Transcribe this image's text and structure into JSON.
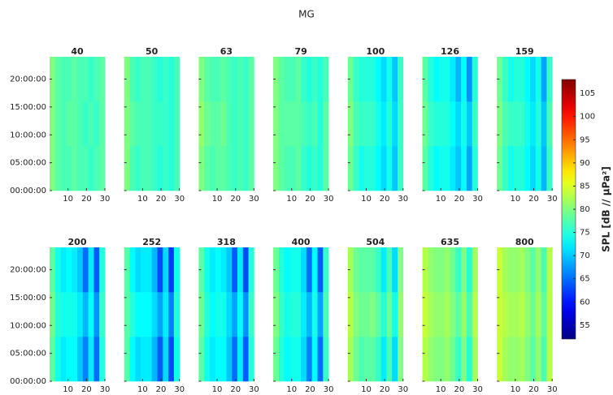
{
  "chart_data": {
    "type": "heatmap",
    "title": "MG",
    "colorbar_label": "SPL [dB // μPa²]",
    "colormap": "jet",
    "xlim": [
      0,
      30
    ],
    "xticks": [
      10,
      20,
      30
    ],
    "ylim": [
      0,
      24
    ],
    "yticks": [
      {
        "value": 0,
        "label": "00:00:00"
      },
      {
        "value": 5,
        "label": "05:00:00"
      },
      {
        "value": 10,
        "label": "10:00:00"
      },
      {
        "value": 15,
        "label": "15:00:00"
      },
      {
        "value": 20,
        "label": "20:00:00"
      }
    ],
    "zlim": [
      52,
      108
    ],
    "zticks": [
      55,
      60,
      65,
      70,
      75,
      80,
      85,
      90,
      95,
      100,
      105
    ],
    "x_bins": [
      0,
      3,
      6,
      9,
      12,
      15,
      18,
      21,
      24,
      27,
      30
    ],
    "y_bins": [
      0,
      8,
      16,
      24
    ],
    "panels": [
      {
        "title": "40",
        "values": [
          [
            80,
            78,
            77,
            77,
            78,
            77,
            77,
            76,
            77,
            78
          ],
          [
            80,
            78,
            77,
            78,
            78,
            77,
            76,
            77,
            76,
            78
          ],
          [
            80,
            78,
            77,
            77,
            78,
            77,
            77,
            76,
            77,
            78
          ]
        ]
      },
      {
        "title": "50",
        "values": [
          [
            80,
            77,
            76,
            77,
            77,
            76,
            75,
            76,
            75,
            77
          ],
          [
            80,
            78,
            77,
            77,
            77,
            76,
            76,
            76,
            75,
            77
          ],
          [
            80,
            77,
            76,
            77,
            77,
            76,
            75,
            76,
            75,
            77
          ]
        ]
      },
      {
        "title": "63",
        "values": [
          [
            80,
            78,
            77,
            78,
            78,
            77,
            76,
            77,
            76,
            78
          ],
          [
            81,
            79,
            78,
            78,
            79,
            77,
            76,
            77,
            76,
            78
          ],
          [
            80,
            78,
            77,
            77,
            78,
            77,
            76,
            77,
            76,
            78
          ]
        ]
      },
      {
        "title": "79",
        "values": [
          [
            80,
            78,
            77,
            77,
            78,
            76,
            75,
            76,
            75,
            78
          ],
          [
            80,
            78,
            78,
            78,
            78,
            77,
            76,
            77,
            75,
            78
          ],
          [
            80,
            78,
            77,
            77,
            78,
            76,
            75,
            76,
            75,
            77
          ]
        ]
      },
      {
        "title": "100",
        "values": [
          [
            79,
            76,
            74,
            75,
            75,
            73,
            71,
            74,
            70,
            76
          ],
          [
            80,
            77,
            76,
            76,
            76,
            74,
            72,
            75,
            71,
            76
          ],
          [
            79,
            76,
            75,
            75,
            75,
            73,
            71,
            74,
            70,
            76
          ]
        ]
      },
      {
        "title": "126",
        "values": [
          [
            78,
            75,
            73,
            74,
            74,
            72,
            70,
            73,
            68,
            75
          ],
          [
            79,
            76,
            75,
            75,
            75,
            73,
            71,
            74,
            70,
            76
          ],
          [
            78,
            75,
            73,
            74,
            74,
            72,
            69,
            73,
            67,
            75
          ]
        ]
      },
      {
        "title": "159",
        "values": [
          [
            79,
            76,
            74,
            75,
            75,
            73,
            71,
            74,
            69,
            76
          ],
          [
            80,
            77,
            76,
            76,
            76,
            74,
            72,
            75,
            70,
            77
          ],
          [
            79,
            76,
            74,
            75,
            75,
            73,
            71,
            74,
            68,
            76
          ]
        ]
      },
      {
        "title": "200",
        "values": [
          [
            78,
            74,
            72,
            73,
            73,
            70,
            66,
            72,
            65,
            75
          ],
          [
            79,
            75,
            74,
            74,
            74,
            72,
            69,
            73,
            67,
            76
          ],
          [
            78,
            74,
            72,
            73,
            72,
            70,
            65,
            72,
            64,
            75
          ]
        ]
      },
      {
        "title": "252",
        "values": [
          [
            78,
            73,
            71,
            72,
            72,
            69,
            64,
            71,
            63,
            74
          ],
          [
            78,
            75,
            73,
            73,
            73,
            71,
            68,
            72,
            66,
            75
          ],
          [
            78,
            73,
            71,
            72,
            72,
            69,
            63,
            71,
            62,
            74
          ]
        ]
      },
      {
        "title": "318",
        "values": [
          [
            78,
            74,
            72,
            73,
            73,
            70,
            65,
            72,
            64,
            75
          ],
          [
            79,
            75,
            73,
            74,
            74,
            71,
            68,
            73,
            67,
            76
          ],
          [
            78,
            74,
            72,
            73,
            72,
            70,
            64,
            72,
            63,
            75
          ]
        ]
      },
      {
        "title": "400",
        "values": [
          [
            79,
            75,
            73,
            74,
            74,
            71,
            66,
            73,
            65,
            76
          ],
          [
            80,
            76,
            74,
            75,
            75,
            72,
            69,
            74,
            68,
            77
          ],
          [
            79,
            75,
            73,
            74,
            74,
            71,
            65,
            73,
            64,
            76
          ]
        ]
      },
      {
        "title": "504",
        "values": [
          [
            82,
            79,
            77,
            78,
            78,
            76,
            72,
            77,
            71,
            80
          ],
          [
            83,
            80,
            79,
            79,
            80,
            78,
            75,
            79,
            74,
            81
          ],
          [
            82,
            79,
            78,
            78,
            78,
            76,
            72,
            77,
            71,
            80
          ]
        ]
      },
      {
        "title": "635",
        "values": [
          [
            83,
            81,
            80,
            80,
            81,
            79,
            76,
            80,
            75,
            82
          ],
          [
            84,
            82,
            81,
            81,
            82,
            80,
            78,
            81,
            77,
            83
          ],
          [
            83,
            81,
            80,
            80,
            81,
            79,
            76,
            80,
            75,
            82
          ]
        ]
      },
      {
        "title": "800",
        "values": [
          [
            84,
            82,
            81,
            81,
            82,
            80,
            78,
            81,
            77,
            83
          ],
          [
            84,
            83,
            82,
            82,
            83,
            81,
            79,
            82,
            78,
            83
          ],
          [
            84,
            82,
            81,
            81,
            82,
            80,
            78,
            81,
            77,
            83
          ]
        ]
      }
    ]
  }
}
